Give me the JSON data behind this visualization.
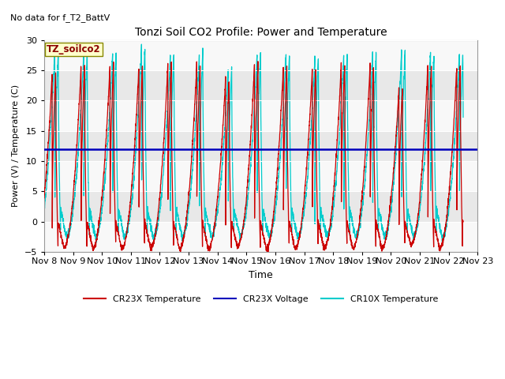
{
  "title": "Tonzi Soil CO2 Profile: Power and Temperature",
  "subtitle": "No data for f_T2_BattV",
  "xlabel": "Time",
  "ylabel": "Power (V) / Temperature (C)",
  "ylim": [
    -5,
    30
  ],
  "xlim": [
    0,
    15
  ],
  "x_tick_labels": [
    "Nov 8",
    "Nov 9",
    "Nov 10",
    "Nov 11",
    "Nov 12",
    "Nov 13",
    "Nov 14",
    "Nov 15",
    "Nov 16",
    "Nov 17",
    "Nov 18",
    "Nov 19",
    "Nov 20",
    "Nov 21",
    "Nov 22",
    "Nov 23"
  ],
  "voltage_level": 12.0,
  "voltage_color": "#0000bb",
  "cr23x_color": "#cc0000",
  "cr10x_color": "#00cccc",
  "background_color": "#ffffff",
  "plot_bg_color": "#e8e8e8",
  "plot_bg_alt": "#f8f8f8",
  "legend_label_voltage": "CR23X Voltage",
  "legend_label_cr23x": "CR23X Temperature",
  "legend_label_cr10x": "CR10X Temperature",
  "annotation_text": "TZ_soilco2",
  "y_ticks": [
    -5,
    0,
    5,
    10,
    15,
    20,
    25,
    30
  ]
}
